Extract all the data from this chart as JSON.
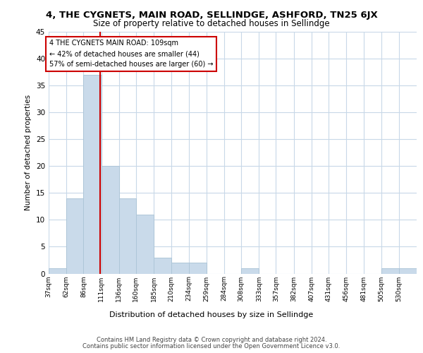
{
  "title": "4, THE CYGNETS, MAIN ROAD, SELLINDGE, ASHFORD, TN25 6JX",
  "subtitle": "Size of property relative to detached houses in Sellindge",
  "xlabel": "Distribution of detached houses by size in Sellindge",
  "ylabel": "Number of detached properties",
  "bin_labels": [
    "37sqm",
    "62sqm",
    "86sqm",
    "111sqm",
    "136sqm",
    "160sqm",
    "185sqm",
    "210sqm",
    "234sqm",
    "259sqm",
    "284sqm",
    "308sqm",
    "333sqm",
    "357sqm",
    "382sqm",
    "407sqm",
    "431sqm",
    "456sqm",
    "481sqm",
    "505sqm",
    "530sqm"
  ],
  "bar_heights": [
    1,
    14,
    37,
    20,
    14,
    11,
    3,
    2,
    2,
    0,
    0,
    1,
    0,
    0,
    0,
    0,
    0,
    0,
    0,
    1,
    1
  ],
  "bar_color": "#c9daea",
  "bar_edge_color": "#aec6d8",
  "vline_x": 109,
  "annotation_title": "4 THE CYGNETS MAIN ROAD: 109sqm",
  "annotation_line1": "← 42% of detached houses are smaller (44)",
  "annotation_line2": "57% of semi-detached houses are larger (60) →",
  "vline_color": "#cc0000",
  "ylim": [
    0,
    45
  ],
  "yticks": [
    0,
    5,
    10,
    15,
    20,
    25,
    30,
    35,
    40,
    45
  ],
  "grid_color": "#c8d8e8",
  "footer1": "Contains HM Land Registry data © Crown copyright and database right 2024.",
  "footer2": "Contains public sector information licensed under the Open Government Licence v3.0.",
  "bin_edges": [
    37,
    62,
    86,
    111,
    136,
    160,
    185,
    210,
    234,
    259,
    284,
    308,
    333,
    357,
    382,
    407,
    431,
    456,
    481,
    505,
    530,
    555
  ]
}
